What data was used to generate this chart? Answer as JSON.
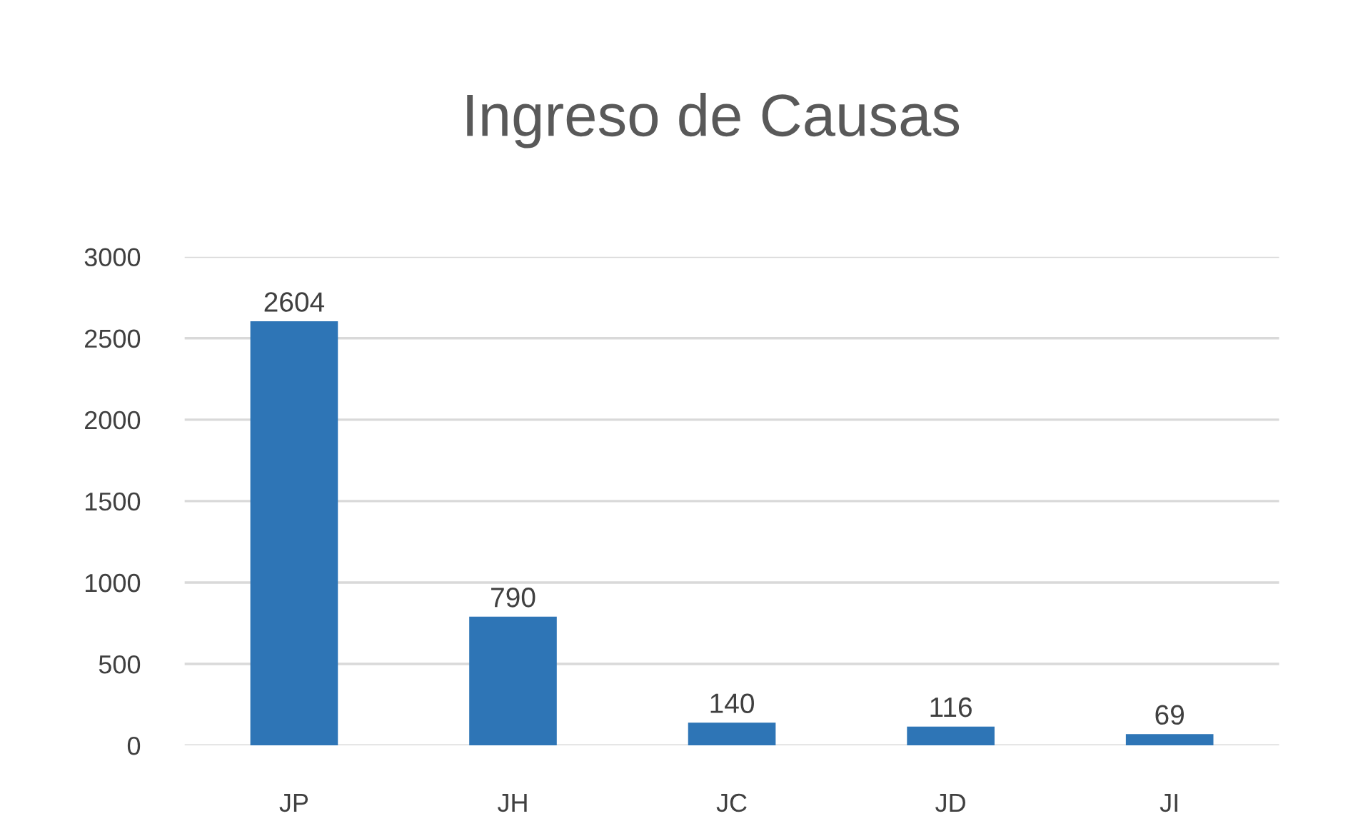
{
  "chart_data": {
    "type": "bar",
    "title": "Ingreso de Causas",
    "categories": [
      "JP",
      "JH",
      "JC",
      "JD",
      "JI"
    ],
    "values": [
      2604,
      790,
      140,
      116,
      69
    ],
    "color": "#2e75b6",
    "ylim": [
      0,
      3000
    ],
    "yticks": [
      0,
      500,
      1000,
      1500,
      2000,
      2500,
      3000
    ],
    "grid": "y",
    "data_labels": true
  }
}
